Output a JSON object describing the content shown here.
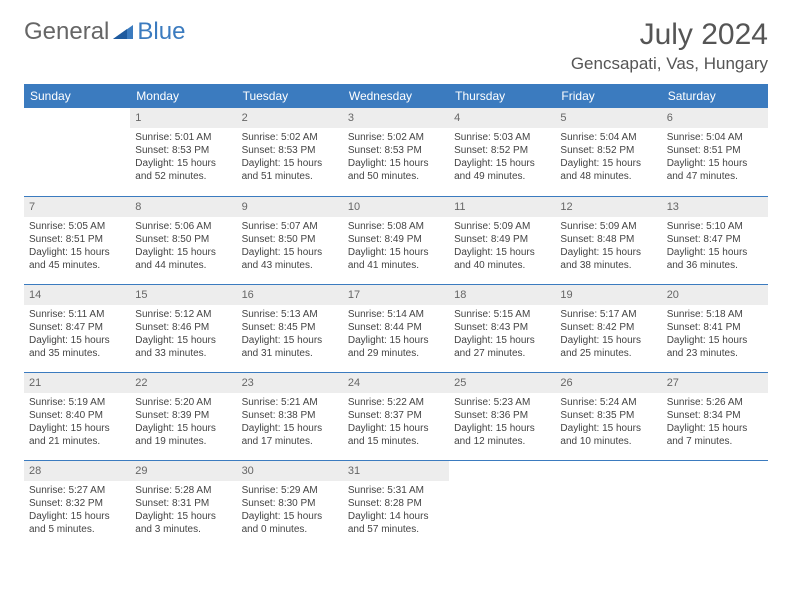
{
  "logo": {
    "word1": "General",
    "word2": "Blue"
  },
  "title": "July 2024",
  "location": "Gencsapati, Vas, Hungary",
  "colors": {
    "header_bg": "#3b7bbf",
    "header_text": "#ffffff",
    "daynum_bg": "#ededed",
    "cell_border": "#3b7bbf",
    "body_text": "#444444",
    "title_text": "#555555"
  },
  "weekdays": [
    "Sunday",
    "Monday",
    "Tuesday",
    "Wednesday",
    "Thursday",
    "Friday",
    "Saturday"
  ],
  "weeks": [
    [
      {
        "n": "",
        "sr": "",
        "ss": "",
        "dl": ""
      },
      {
        "n": "1",
        "sr": "Sunrise: 5:01 AM",
        "ss": "Sunset: 8:53 PM",
        "dl": "Daylight: 15 hours and 52 minutes."
      },
      {
        "n": "2",
        "sr": "Sunrise: 5:02 AM",
        "ss": "Sunset: 8:53 PM",
        "dl": "Daylight: 15 hours and 51 minutes."
      },
      {
        "n": "3",
        "sr": "Sunrise: 5:02 AM",
        "ss": "Sunset: 8:53 PM",
        "dl": "Daylight: 15 hours and 50 minutes."
      },
      {
        "n": "4",
        "sr": "Sunrise: 5:03 AM",
        "ss": "Sunset: 8:52 PM",
        "dl": "Daylight: 15 hours and 49 minutes."
      },
      {
        "n": "5",
        "sr": "Sunrise: 5:04 AM",
        "ss": "Sunset: 8:52 PM",
        "dl": "Daylight: 15 hours and 48 minutes."
      },
      {
        "n": "6",
        "sr": "Sunrise: 5:04 AM",
        "ss": "Sunset: 8:51 PM",
        "dl": "Daylight: 15 hours and 47 minutes."
      }
    ],
    [
      {
        "n": "7",
        "sr": "Sunrise: 5:05 AM",
        "ss": "Sunset: 8:51 PM",
        "dl": "Daylight: 15 hours and 45 minutes."
      },
      {
        "n": "8",
        "sr": "Sunrise: 5:06 AM",
        "ss": "Sunset: 8:50 PM",
        "dl": "Daylight: 15 hours and 44 minutes."
      },
      {
        "n": "9",
        "sr": "Sunrise: 5:07 AM",
        "ss": "Sunset: 8:50 PM",
        "dl": "Daylight: 15 hours and 43 minutes."
      },
      {
        "n": "10",
        "sr": "Sunrise: 5:08 AM",
        "ss": "Sunset: 8:49 PM",
        "dl": "Daylight: 15 hours and 41 minutes."
      },
      {
        "n": "11",
        "sr": "Sunrise: 5:09 AM",
        "ss": "Sunset: 8:49 PM",
        "dl": "Daylight: 15 hours and 40 minutes."
      },
      {
        "n": "12",
        "sr": "Sunrise: 5:09 AM",
        "ss": "Sunset: 8:48 PM",
        "dl": "Daylight: 15 hours and 38 minutes."
      },
      {
        "n": "13",
        "sr": "Sunrise: 5:10 AM",
        "ss": "Sunset: 8:47 PM",
        "dl": "Daylight: 15 hours and 36 minutes."
      }
    ],
    [
      {
        "n": "14",
        "sr": "Sunrise: 5:11 AM",
        "ss": "Sunset: 8:47 PM",
        "dl": "Daylight: 15 hours and 35 minutes."
      },
      {
        "n": "15",
        "sr": "Sunrise: 5:12 AM",
        "ss": "Sunset: 8:46 PM",
        "dl": "Daylight: 15 hours and 33 minutes."
      },
      {
        "n": "16",
        "sr": "Sunrise: 5:13 AM",
        "ss": "Sunset: 8:45 PM",
        "dl": "Daylight: 15 hours and 31 minutes."
      },
      {
        "n": "17",
        "sr": "Sunrise: 5:14 AM",
        "ss": "Sunset: 8:44 PM",
        "dl": "Daylight: 15 hours and 29 minutes."
      },
      {
        "n": "18",
        "sr": "Sunrise: 5:15 AM",
        "ss": "Sunset: 8:43 PM",
        "dl": "Daylight: 15 hours and 27 minutes."
      },
      {
        "n": "19",
        "sr": "Sunrise: 5:17 AM",
        "ss": "Sunset: 8:42 PM",
        "dl": "Daylight: 15 hours and 25 minutes."
      },
      {
        "n": "20",
        "sr": "Sunrise: 5:18 AM",
        "ss": "Sunset: 8:41 PM",
        "dl": "Daylight: 15 hours and 23 minutes."
      }
    ],
    [
      {
        "n": "21",
        "sr": "Sunrise: 5:19 AM",
        "ss": "Sunset: 8:40 PM",
        "dl": "Daylight: 15 hours and 21 minutes."
      },
      {
        "n": "22",
        "sr": "Sunrise: 5:20 AM",
        "ss": "Sunset: 8:39 PM",
        "dl": "Daylight: 15 hours and 19 minutes."
      },
      {
        "n": "23",
        "sr": "Sunrise: 5:21 AM",
        "ss": "Sunset: 8:38 PM",
        "dl": "Daylight: 15 hours and 17 minutes."
      },
      {
        "n": "24",
        "sr": "Sunrise: 5:22 AM",
        "ss": "Sunset: 8:37 PM",
        "dl": "Daylight: 15 hours and 15 minutes."
      },
      {
        "n": "25",
        "sr": "Sunrise: 5:23 AM",
        "ss": "Sunset: 8:36 PM",
        "dl": "Daylight: 15 hours and 12 minutes."
      },
      {
        "n": "26",
        "sr": "Sunrise: 5:24 AM",
        "ss": "Sunset: 8:35 PM",
        "dl": "Daylight: 15 hours and 10 minutes."
      },
      {
        "n": "27",
        "sr": "Sunrise: 5:26 AM",
        "ss": "Sunset: 8:34 PM",
        "dl": "Daylight: 15 hours and 7 minutes."
      }
    ],
    [
      {
        "n": "28",
        "sr": "Sunrise: 5:27 AM",
        "ss": "Sunset: 8:32 PM",
        "dl": "Daylight: 15 hours and 5 minutes."
      },
      {
        "n": "29",
        "sr": "Sunrise: 5:28 AM",
        "ss": "Sunset: 8:31 PM",
        "dl": "Daylight: 15 hours and 3 minutes."
      },
      {
        "n": "30",
        "sr": "Sunrise: 5:29 AM",
        "ss": "Sunset: 8:30 PM",
        "dl": "Daylight: 15 hours and 0 minutes."
      },
      {
        "n": "31",
        "sr": "Sunrise: 5:31 AM",
        "ss": "Sunset: 8:28 PM",
        "dl": "Daylight: 14 hours and 57 minutes."
      },
      {
        "n": "",
        "sr": "",
        "ss": "",
        "dl": ""
      },
      {
        "n": "",
        "sr": "",
        "ss": "",
        "dl": ""
      },
      {
        "n": "",
        "sr": "",
        "ss": "",
        "dl": ""
      }
    ]
  ]
}
